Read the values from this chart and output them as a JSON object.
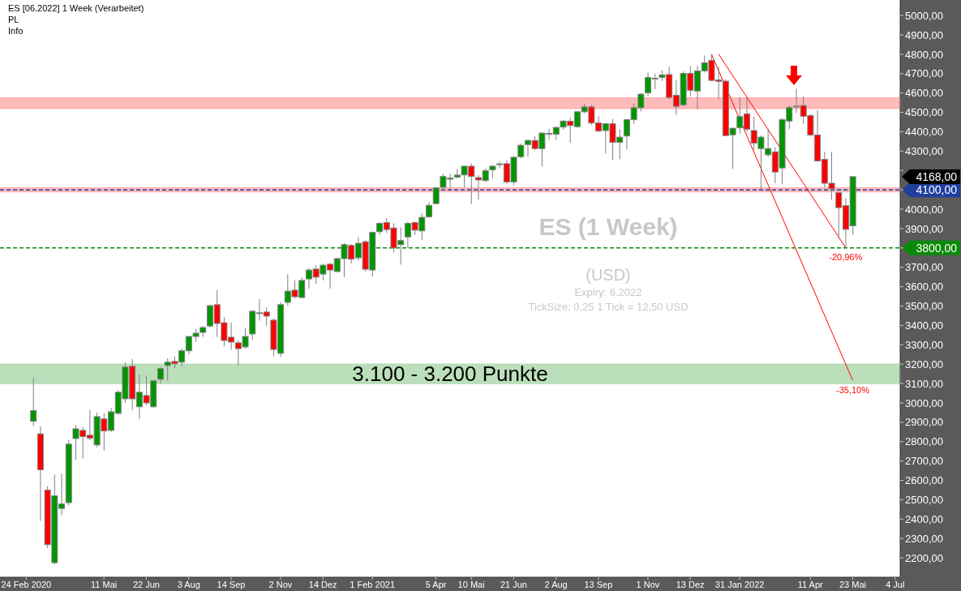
{
  "chart_data": {
    "type": "candlestick",
    "title": "ES [06.2022] 1 Week (Verarbeitet)",
    "annotations": [
      "PL",
      "Info",
      "ES (1 Week)",
      "(USD)",
      "Expiry: 6.2022",
      "TickSize: 0,25   1 Tick = 12,50 USD",
      "4168,00",
      {
        "text": "-20,96%",
        "x": "2022-05-16",
        "y": 3801
      },
      {
        "text": "-35,10%",
        "x": "2022-05-23",
        "y": 3116
      }
    ],
    "colors": [
      "#009600",
      "#ff0000",
      "#ff0000",
      "#009600",
      "#009600",
      "#009600",
      "#009600",
      "#ff0000",
      "#ff0000",
      "#009600",
      "#ff0000",
      "#009600",
      "#009600",
      "#009600",
      "#ff0000",
      "#009600",
      "#ff0000",
      "#009600",
      "#009600",
      "#009600",
      "#ff0000",
      "#009600",
      "#009600",
      "#009600",
      "#009600",
      "#009600",
      "#ff0000",
      "#ff0000",
      "#ff0000",
      "#ff0000",
      "#009600",
      "#009600",
      "#ff0000",
      "#ff0000",
      "#ff0000",
      "#009600",
      "#009600",
      "#ff0000",
      "#009600",
      "#009600",
      "#ff0000",
      "#009600",
      "#ff0000",
      "#009600",
      "#009600",
      "#ff0000",
      "#009600",
      "#ff0000",
      "#009600",
      "#009600",
      "#ff0000",
      "#ff0000",
      "#009600",
      "#009600",
      "#ff0000",
      "#009600",
      "#009600",
      "#009600",
      "#009600",
      "#009600",
      "#009600",
      "#009600",
      "#ff0000",
      "#ff0000",
      "#009600",
      "#009600",
      "#009600",
      "#ff0000",
      "#009600",
      "#009600",
      "#009600",
      "#ff0000",
      "#009600",
      "#009600",
      "#009600",
      "#009600",
      "#ff0000",
      "#009600",
      "#009600",
      "#ff0000",
      "#ff0000",
      "#009600",
      "#ff0000",
      "#009600",
      "#009600",
      "#009600",
      "#009600",
      "#009600",
      "#ff0000",
      "#009600",
      "#ff0000",
      "#ff0000",
      "#009600",
      "#ff0000",
      "#009600",
      "#009600",
      "#ff0000",
      "#ff0000",
      "#ff0000",
      "#009600",
      "#009600",
      "#ff0000",
      "#ff0000",
      "#009600",
      "#009600",
      "#ff0000",
      "#009600",
      "#009600",
      "#009600",
      "#ff0000",
      "#ff0000",
      "#ff0000",
      "#ff0000",
      "#ff0000",
      "#ff0000",
      "#ff0000",
      "#009600"
    ],
    "x": [
      "2020-03-02",
      "2020-03-09",
      "2020-03-16",
      "2020-03-23",
      "2020-03-30",
      "2020-04-06",
      "2020-04-13",
      "2020-04-20",
      "2020-04-27",
      "2020-05-04",
      "2020-05-11",
      "2020-05-18",
      "2020-05-25",
      "2020-06-01",
      "2020-06-08",
      "2020-06-15",
      "2020-06-22",
      "2020-06-29",
      "2020-07-06",
      "2020-07-13",
      "2020-07-20",
      "2020-07-27",
      "2020-08-03",
      "2020-08-10",
      "2020-08-17",
      "2020-08-24",
      "2020-08-31",
      "2020-09-07",
      "2020-09-14",
      "2020-09-21",
      "2020-09-28",
      "2020-10-05",
      "2020-10-12",
      "2020-10-19",
      "2020-10-26",
      "2020-11-02",
      "2020-11-09",
      "2020-11-16",
      "2020-11-23",
      "2020-11-30",
      "2020-12-07",
      "2020-12-14",
      "2020-12-21",
      "2020-12-28",
      "2021-01-04",
      "2021-01-11",
      "2021-01-18",
      "2021-01-25",
      "2021-02-01",
      "2021-02-08",
      "2021-02-15",
      "2021-02-22",
      "2021-03-01",
      "2021-03-08",
      "2021-03-15",
      "2021-03-22",
      "2021-03-29",
      "2021-04-05",
      "2021-04-12",
      "2021-04-19",
      "2021-04-26",
      "2021-05-03",
      "2021-05-10",
      "2021-05-17",
      "2021-05-24",
      "2021-05-31",
      "2021-06-07",
      "2021-06-14",
      "2021-06-21",
      "2021-06-28",
      "2021-07-05",
      "2021-07-12",
      "2021-07-19",
      "2021-07-26",
      "2021-08-02",
      "2021-08-09",
      "2021-08-16",
      "2021-08-23",
      "2021-08-30",
      "2021-09-06",
      "2021-09-13",
      "2021-09-20",
      "2021-09-27",
      "2021-10-04",
      "2021-10-11",
      "2021-10-18",
      "2021-10-25",
      "2021-11-01",
      "2021-11-08",
      "2021-11-15",
      "2021-11-22",
      "2021-11-29",
      "2021-12-06",
      "2021-12-13",
      "2021-12-20",
      "2021-12-27",
      "2022-01-03",
      "2022-01-10",
      "2022-01-17",
      "2022-01-24",
      "2022-01-31",
      "2022-02-07",
      "2022-02-14",
      "2022-02-21",
      "2022-02-28",
      "2022-03-07",
      "2022-03-14",
      "2022-03-21",
      "2022-03-28",
      "2022-04-04",
      "2022-04-11",
      "2022-04-18",
      "2022-04-25",
      "2022-05-02",
      "2022-05-09",
      "2022-05-16",
      "2022-05-23"
    ],
    "ohlc": [
      [
        2905,
        3130,
        2880,
        2960
      ],
      [
        2840,
        2880,
        2390,
        2655
      ],
      [
        2550,
        2570,
        2250,
        2268
      ],
      [
        2175,
        2630,
        2165,
        2520
      ],
      [
        2455,
        2635,
        2420,
        2478
      ],
      [
        2485,
        2810,
        2470,
        2787
      ],
      [
        2816,
        2885,
        2705,
        2866
      ],
      [
        2858,
        2876,
        2712,
        2826
      ],
      [
        2833,
        2963,
        2808,
        2818
      ],
      [
        2783,
        2950,
        2770,
        2929
      ],
      [
        2917,
        2946,
        2753,
        2855
      ],
      [
        2858,
        2975,
        2850,
        2954
      ],
      [
        2946,
        3065,
        2940,
        3055
      ],
      [
        3021,
        3210,
        3000,
        3185
      ],
      [
        3189,
        3227,
        2963,
        3021
      ],
      [
        2980,
        3147,
        2917,
        3055
      ],
      [
        3038,
        3143,
        2988,
        3000
      ],
      [
        2980,
        3120,
        2975,
        3114
      ],
      [
        3122,
        3185,
        3100,
        3177
      ],
      [
        3193,
        3230,
        3114,
        3210
      ],
      [
        3214,
        3240,
        3180,
        3202
      ],
      [
        3210,
        3280,
        3190,
        3269
      ],
      [
        3269,
        3345,
        3250,
        3343
      ],
      [
        3343,
        3382,
        3316,
        3360
      ],
      [
        3364,
        3397,
        3341,
        3389
      ],
      [
        3397,
        3508,
        3389,
        3502
      ],
      [
        3507,
        3582,
        3341,
        3410
      ],
      [
        3414,
        3443,
        3292,
        3322
      ],
      [
        3339,
        3414,
        3274,
        3314
      ],
      [
        3310,
        3322,
        3195,
        3280
      ],
      [
        3289,
        3385,
        3280,
        3343
      ],
      [
        3356,
        3478,
        3326,
        3473
      ],
      [
        3465,
        3536,
        3425,
        3462
      ],
      [
        3469,
        3494,
        3397,
        3448
      ],
      [
        3427,
        3435,
        3240,
        3276
      ],
      [
        3256,
        3519,
        3237,
        3507
      ],
      [
        3519,
        3665,
        3502,
        3577
      ],
      [
        3582,
        3632,
        3540,
        3548
      ],
      [
        3544,
        3648,
        3540,
        3632
      ],
      [
        3640,
        3695,
        3590,
        3686
      ],
      [
        3691,
        3711,
        3615,
        3649
      ],
      [
        3665,
        3718,
        3632,
        3711
      ],
      [
        3716,
        3722,
        3590,
        3686
      ],
      [
        3678,
        3750,
        3674,
        3745
      ],
      [
        3745,
        3825,
        3650,
        3817
      ],
      [
        3813,
        3820,
        3720,
        3742
      ],
      [
        3749,
        3855,
        3735,
        3824
      ],
      [
        3832,
        3840,
        3678,
        3690
      ],
      [
        3686,
        3885,
        3652,
        3880
      ],
      [
        3884,
        3934,
        3870,
        3927
      ],
      [
        3931,
        3954,
        3877,
        3895
      ],
      [
        3903,
        3927,
        3776,
        3800
      ],
      [
        3817,
        3906,
        3714,
        3838
      ],
      [
        3857,
        3935,
        3800,
        3927
      ],
      [
        3931,
        3935,
        3868,
        3892
      ],
      [
        3888,
        3979,
        3841,
        3958
      ],
      [
        3961,
        4038,
        3955,
        4020
      ],
      [
        4029,
        4115,
        4025,
        4110
      ],
      [
        4113,
        4183,
        4105,
        4169
      ],
      [
        4155,
        4183,
        4108,
        4161
      ],
      [
        4165,
        4207,
        4160,
        4176
      ],
      [
        4177,
        4225,
        4113,
        4222
      ],
      [
        4222,
        4235,
        4027,
        4169
      ],
      [
        4163,
        4176,
        4050,
        4151
      ],
      [
        4148,
        4210,
        4140,
        4199
      ],
      [
        4203,
        4228,
        4160,
        4222
      ],
      [
        4230,
        4245,
        4210,
        4234
      ],
      [
        4235,
        4253,
        4130,
        4141
      ],
      [
        4141,
        4275,
        4123,
        4268
      ],
      [
        4271,
        4338,
        4261,
        4330
      ],
      [
        4334,
        4360,
        4271,
        4355
      ],
      [
        4355,
        4376,
        4305,
        4313
      ],
      [
        4313,
        4398,
        4220,
        4393
      ],
      [
        4388,
        4415,
        4359,
        4391
      ],
      [
        4387,
        4428,
        4359,
        4422
      ],
      [
        4424,
        4460,
        4410,
        4455
      ],
      [
        4454,
        4472,
        4343,
        4432
      ],
      [
        4426,
        4508,
        4420,
        4503
      ],
      [
        4503,
        4545,
        4495,
        4528
      ],
      [
        4528,
        4540,
        4435,
        4445
      ],
      [
        4445,
        4480,
        4400,
        4403
      ],
      [
        4406,
        4445,
        4288,
        4441
      ],
      [
        4441,
        4466,
        4255,
        4345
      ],
      [
        4345,
        4413,
        4258,
        4372
      ],
      [
        4378,
        4466,
        4309,
        4462
      ],
      [
        4462,
        4545,
        4440,
        4524
      ],
      [
        4524,
        4600,
        4505,
        4594
      ],
      [
        4601,
        4707,
        4584,
        4680
      ],
      [
        4676,
        4700,
        4620,
        4674
      ],
      [
        4681,
        4716,
        4662,
        4693
      ],
      [
        4695,
        4735,
        4570,
        4577
      ],
      [
        4588,
        4665,
        4487,
        4531
      ],
      [
        4539,
        4712,
        4530,
        4701
      ],
      [
        4701,
        4739,
        4581,
        4614
      ],
      [
        4610,
        4740,
        4515,
        4714
      ],
      [
        4714,
        4793,
        4705,
        4756
      ],
      [
        4768,
        4801,
        4660,
        4665
      ],
      [
        4667,
        4735,
        4567,
        4660
      ],
      [
        4661,
        4670,
        4380,
        4380
      ],
      [
        4384,
        4420,
        4208,
        4418
      ],
      [
        4420,
        4578,
        4390,
        4478
      ],
      [
        4492,
        4578,
        4400,
        4413
      ],
      [
        4406,
        4478,
        4306,
        4341
      ],
      [
        4313,
        4380,
        4105,
        4372
      ],
      [
        4281,
        4416,
        4270,
        4313
      ],
      [
        4296,
        4320,
        4134,
        4192
      ],
      [
        4213,
        4470,
        4130,
        4462
      ],
      [
        4455,
        4535,
        4413,
        4525
      ],
      [
        4530,
        4622,
        4497,
        4532
      ],
      [
        4535,
        4584,
        4441,
        4480
      ],
      [
        4483,
        4490,
        4375,
        4383
      ],
      [
        4383,
        4510,
        4245,
        4249
      ],
      [
        4257,
        4296,
        4113,
        4134
      ],
      [
        4134,
        4296,
        4050,
        4106
      ],
      [
        4085,
        4090,
        3847,
        4008
      ],
      [
        4018,
        4057,
        3801,
        3896
      ],
      [
        3914,
        4168,
        3868,
        4168
      ]
    ],
    "series": [
      {
        "type": "line",
        "color": "#ff0000",
        "x": [
          "2022-01-10",
          "2022-05-16"
        ],
        "values": [
          4801,
          3801
        ]
      },
      {
        "type": "line",
        "color": "#ff0000",
        "x": [
          "2022-01-03",
          "2022-05-23"
        ],
        "values": [
          4801,
          3116
        ]
      }
    ],
    "ref_lines": [
      {
        "axis": "y",
        "value": 4100,
        "label": "4100,00",
        "color": "#1f3f9f",
        "line_style": "dashed"
      },
      {
        "axis": "y",
        "value": 3800,
        "label": "3800,00",
        "color": "#0a8a0a",
        "line_style": "dashed"
      }
    ],
    "bands": [
      {
        "axis": "y",
        "from": 3100,
        "to": 3200,
        "label": "3.100 - 3.200 Punkte",
        "color": "#b4dcb4"
      },
      {
        "axis": "y",
        "from": 4520,
        "to": 4575,
        "color": "#ffb4b4"
      },
      {
        "axis": "y",
        "from": 4090,
        "to": 4110,
        "color": "#ffb4b4"
      }
    ],
    "xlim": [
      "2020-01-29",
      "2022-07-09"
    ],
    "xticks": [
      {
        "value": "2020-02-24",
        "label": "24 Feb 2020"
      },
      {
        "value": "2020-05-11",
        "label": "11 Mai"
      },
      {
        "value": "2020-06-22",
        "label": "22 Jun"
      },
      {
        "value": "2020-08-03",
        "label": "3 Aug"
      },
      {
        "value": "2020-09-14",
        "label": "14 Sep"
      },
      {
        "value": "2020-11-02",
        "label": "2 Nov"
      },
      {
        "value": "2020-12-14",
        "label": "14 Dez"
      },
      {
        "value": "2021-02-01",
        "label": "1 Feb 2021"
      },
      {
        "value": "2021-04-05",
        "label": "5 Apr"
      },
      {
        "value": "2021-05-10",
        "label": "10 Mai"
      },
      {
        "value": "2021-06-21",
        "label": "21 Jun"
      },
      {
        "value": "2021-08-02",
        "label": "2 Aug"
      },
      {
        "value": "2021-09-13",
        "label": "13 Sep"
      },
      {
        "value": "2021-11-01",
        "label": "1 Nov"
      },
      {
        "value": "2021-12-13",
        "label": "13 Dez"
      },
      {
        "value": "2022-01-31",
        "label": "31 Jan 2022"
      },
      {
        "value": "2022-04-11",
        "label": "11 Apr"
      },
      {
        "value": "2022-05-23",
        "label": "23 Mai"
      },
      {
        "value": "2022-07-04",
        "label": "4 Jul"
      }
    ],
    "ylim": [
      2100,
      5080
    ],
    "yticks": [
      {
        "value": 2200,
        "label": "2200,00"
      },
      {
        "value": 2300,
        "label": "2300,00"
      },
      {
        "value": 2400,
        "label": "2400,00"
      },
      {
        "value": 2500,
        "label": "2500,00"
      },
      {
        "value": 2600,
        "label": "2600,00"
      },
      {
        "value": 2700,
        "label": "2700,00"
      },
      {
        "value": 2800,
        "label": "2800,00"
      },
      {
        "value": 2900,
        "label": "2900,00"
      },
      {
        "value": 3000,
        "label": "3000,00"
      },
      {
        "value": 3100,
        "label": "3100,00"
      },
      {
        "value": 3200,
        "label": "3200,00"
      },
      {
        "value": 3300,
        "label": "3300,00"
      },
      {
        "value": 3400,
        "label": "3400,00"
      },
      {
        "value": 3500,
        "label": "3500,00"
      },
      {
        "value": 3600,
        "label": "3600,00"
      },
      {
        "value": 3700,
        "label": "3700,00"
      },
      {
        "value": 3800,
        "label": null
      },
      {
        "value": 3900,
        "label": "3900,00"
      },
      {
        "value": 4000,
        "label": "4000,00"
      },
      {
        "value": 4100,
        "label": null
      },
      {
        "value": 4200,
        "label": null
      },
      {
        "value": 4300,
        "label": "4300,00"
      },
      {
        "value": 4400,
        "label": "4400,00"
      },
      {
        "value": 4500,
        "label": "4500,00"
      },
      {
        "value": 4600,
        "label": "4600,00"
      },
      {
        "value": 4700,
        "label": "4700,00"
      },
      {
        "value": 4800,
        "label": "4800,00"
      },
      {
        "value": 4900,
        "label": "4900,00"
      },
      {
        "value": 5000,
        "label": "5000,00"
      }
    ]
  }
}
